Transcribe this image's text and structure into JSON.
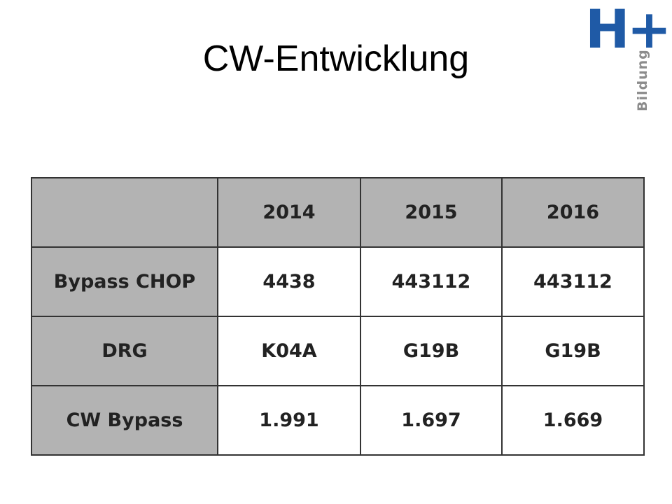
{
  "header": {
    "title": "CW-Entwicklung",
    "logo": "H+",
    "logo_subtitle": "Bildung"
  },
  "table": {
    "columns": [
      "2014",
      "2015",
      "2016"
    ],
    "rows": [
      {
        "label": "Bypass CHOP",
        "cells": [
          "4438",
          "443112",
          "443112"
        ]
      },
      {
        "label": "DRG",
        "cells": [
          "K04A",
          "G19B",
          "G19B"
        ]
      },
      {
        "label": "CW Bypass",
        "cells": [
          "1.991",
          "1.697",
          "1.669"
        ]
      }
    ]
  }
}
